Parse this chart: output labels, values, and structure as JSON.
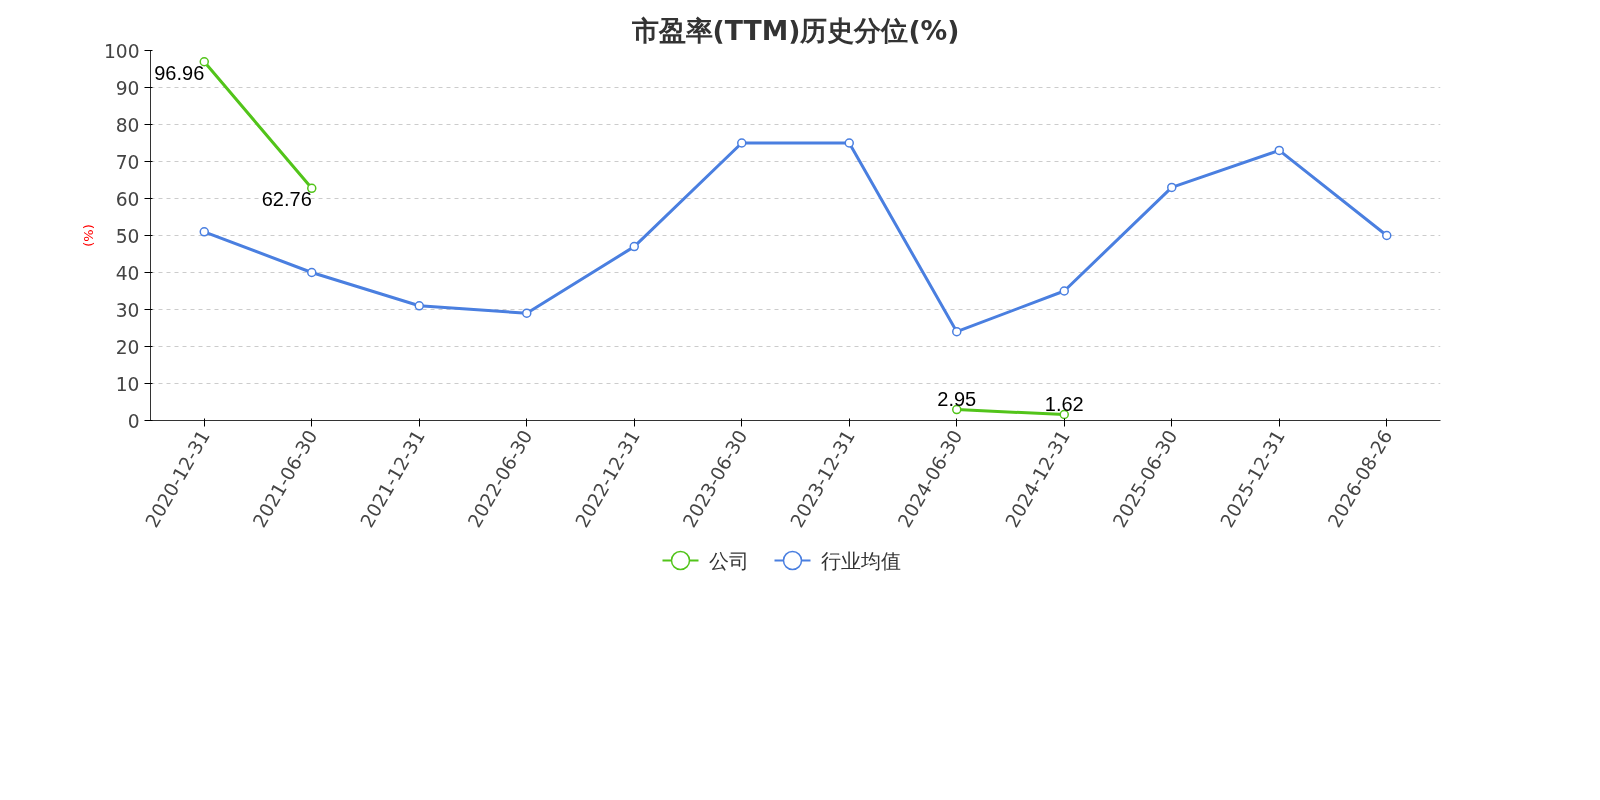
{
  "chart_data": {
    "type": "line",
    "title": "市盈率(TTM)历史分位(%)",
    "ylabel": "(%)",
    "categories": [
      "2020-12-31",
      "2021-06-30",
      "2021-12-31",
      "2022-06-30",
      "2022-12-31",
      "2023-06-30",
      "2023-12-31",
      "2024-06-30",
      "2024-12-31",
      "2025-06-30",
      "2025-12-31",
      "2026-08-26"
    ],
    "series": [
      {
        "name": "公司",
        "color": "#52c41a",
        "values": [
          96.96,
          62.76,
          null,
          null,
          null,
          null,
          null,
          2.95,
          1.62,
          null,
          null,
          null
        ],
        "value_labels": [
          "96.96",
          "62.76",
          null,
          null,
          null,
          null,
          null,
          "2.95",
          "1.62",
          null,
          null,
          null
        ]
      },
      {
        "name": "行业均值",
        "color": "#4a7fe0",
        "values": [
          51,
          40,
          31,
          29,
          47,
          75,
          75,
          24,
          35,
          63,
          73,
          50
        ]
      }
    ],
    "ylim": [
      0,
      100
    ],
    "yticks": [
      0,
      10,
      20,
      30,
      40,
      50,
      60,
      70,
      80,
      90,
      100
    ],
    "grid": "y",
    "legend": "bottom",
    "marker": "circle",
    "line_style": "solid"
  }
}
